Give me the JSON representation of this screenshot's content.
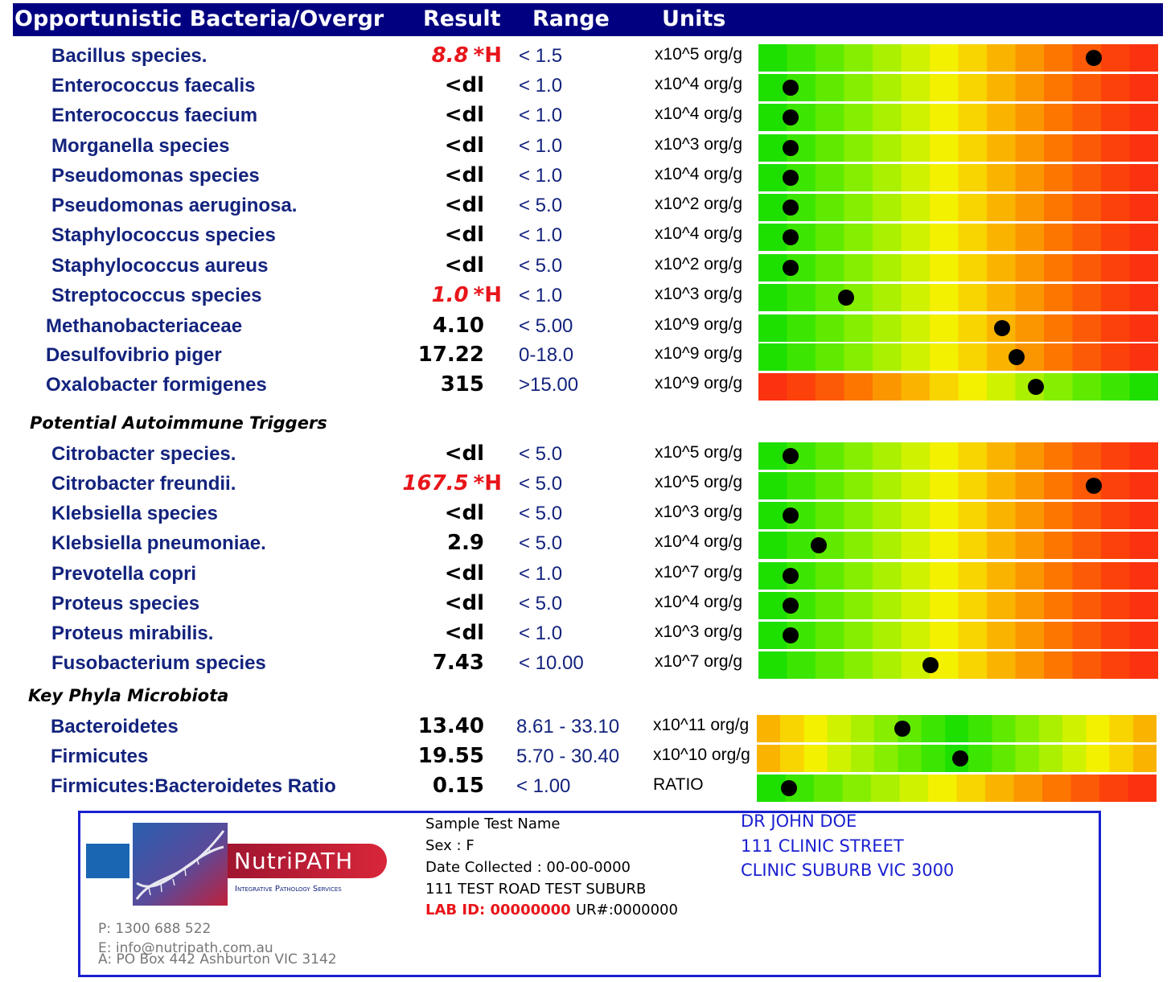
{
  "header": {
    "title": "Opportunistic Bacteria/Overgr",
    "result": "Result",
    "range": "Range",
    "units": "Units"
  },
  "colors": {
    "header_bg": "#000080",
    "name_text": "#13237d",
    "high_flag": "#e8151a",
    "footer_border": "#1a1fd0"
  },
  "sections": {
    "autoimmune": "Potential Autoimmune Triggers",
    "phyla": "Key Phyla Microbiota"
  },
  "rows": [
    {
      "name": "Bacillus species.",
      "result": "8.8",
      "flag": "*H",
      "high": true,
      "range": "< 1.5",
      "unit": "x10^5 org/g",
      "gradient": "green-red",
      "level": 0.84
    },
    {
      "name": "Enterococcus faecalis",
      "result": "<dl",
      "flag": "",
      "high": false,
      "range": "< 1.0",
      "unit": "x10^4 org/g",
      "gradient": "green-red",
      "level": 0.08
    },
    {
      "name": "Enterococcus faecium",
      "result": "<dl",
      "flag": "",
      "high": false,
      "range": "< 1.0",
      "unit": "x10^4 org/g",
      "gradient": "green-red",
      "level": 0.08
    },
    {
      "name": "Morganella species",
      "result": "<dl",
      "flag": "",
      "high": false,
      "range": "< 1.0",
      "unit": "x10^3 org/g",
      "gradient": "green-red",
      "level": 0.08
    },
    {
      "name": "Pseudomonas species",
      "result": "<dl",
      "flag": "",
      "high": false,
      "range": "< 1.0",
      "unit": "x10^4 org/g",
      "gradient": "green-red",
      "level": 0.08
    },
    {
      "name": "Pseudomonas aeruginosa.",
      "result": "<dl",
      "flag": "",
      "high": false,
      "range": "< 5.0",
      "unit": "x10^2 org/g",
      "gradient": "green-red",
      "level": 0.08
    },
    {
      "name": "Staphylococcus species",
      "result": "<dl",
      "flag": "",
      "high": false,
      "range": "< 1.0",
      "unit": "x10^4 org/g",
      "gradient": "green-red",
      "level": 0.08
    },
    {
      "name": "Staphylococcus aureus",
      "result": "<dl",
      "flag": "",
      "high": false,
      "range": "< 5.0",
      "unit": "x10^2 org/g",
      "gradient": "green-red",
      "level": 0.08
    },
    {
      "name": "Streptococcus species",
      "result": "1.0",
      "flag": "*H",
      "high": true,
      "range": "< 1.0",
      "unit": "x10^3 org/g",
      "gradient": "green-red",
      "level": 0.22
    },
    {
      "name": "Methanobacteriaceae",
      "result": "4.10",
      "flag": "",
      "high": false,
      "range": "< 5.00",
      "unit": "x10^9 org/g",
      "gradient": "green-red",
      "level": 0.61
    },
    {
      "name": "Desulfovibrio piger",
      "result": "17.22",
      "flag": "",
      "high": false,
      "range": "0-18.0",
      "unit": "x10^9 org/g",
      "gradient": "green-red",
      "level": 0.645
    },
    {
      "name": "Oxalobacter formigenes",
      "result": "315",
      "flag": "",
      "high": false,
      "range": ">15.00",
      "unit": "x10^9 org/g",
      "gradient": "red-green",
      "level": 0.695
    },
    {
      "name": "Citrobacter species.",
      "result": "<dl",
      "flag": "",
      "high": false,
      "range": "< 5.0",
      "unit": "x10^5 org/g",
      "gradient": "green-red",
      "level": 0.08
    },
    {
      "name": "Citrobacter freundii.",
      "result": "167.5",
      "flag": "*H",
      "high": true,
      "range": "< 5.0",
      "unit": "x10^5 org/g",
      "gradient": "green-red",
      "level": 0.84
    },
    {
      "name": "Klebsiella species",
      "result": "<dl",
      "flag": "",
      "high": false,
      "range": "< 5.0",
      "unit": "x10^3 org/g",
      "gradient": "green-red",
      "level": 0.08
    },
    {
      "name": "Klebsiella pneumoniae.",
      "result": "2.9",
      "flag": "",
      "high": false,
      "range": "< 5.0",
      "unit": "x10^4 org/g",
      "gradient": "green-red",
      "level": 0.15
    },
    {
      "name": "Prevotella copri",
      "result": "<dl",
      "flag": "",
      "high": false,
      "range": "< 1.0",
      "unit": "x10^7 org/g",
      "gradient": "green-red",
      "level": 0.08
    },
    {
      "name": "Proteus species",
      "result": "<dl",
      "flag": "",
      "high": false,
      "range": "< 5.0",
      "unit": "x10^4 org/g",
      "gradient": "green-red",
      "level": 0.08
    },
    {
      "name": "Proteus mirabilis.",
      "result": "<dl",
      "flag": "",
      "high": false,
      "range": "< 1.0",
      "unit": "x10^3 org/g",
      "gradient": "green-red",
      "level": 0.08
    },
    {
      "name": "Fusobacterium species",
      "result": "7.43",
      "flag": "",
      "high": false,
      "range": "< 10.00",
      "unit": "x10^7 org/g",
      "gradient": "green-red",
      "level": 0.43
    },
    {
      "name": "Bacteroidetes",
      "result": "13.40",
      "flag": "",
      "high": false,
      "range": "8.61 - 33.10",
      "unit": "x10^11 org/g",
      "gradient": "red-green-red",
      "level": 0.365
    },
    {
      "name": "Firmicutes",
      "result": "19.55",
      "flag": "",
      "high": false,
      "range": "5.70 - 30.40",
      "unit": "x10^10 org/g",
      "gradient": "red-green-red",
      "level": 0.51
    },
    {
      "name": "Firmicutes:Bacteroidetes Ratio",
      "result": "0.15",
      "flag": "",
      "high": false,
      "range": "< 1.00",
      "unit": "RATIO",
      "gradient": "green-red",
      "level": 0.08
    }
  ],
  "footer": {
    "logo_word": "NutriPATH",
    "logo_tagline": "Integrative Pathology Services",
    "phone": "P: 1300 688 522",
    "email": "E: info@nutripath.com.au",
    "address": "A: PO Box 442 Ashburton VIC 3142",
    "patient_name": "Sample Test Name",
    "sex": "Sex : F",
    "date_collected": "Date Collected :  00-00-0000",
    "patient_address": "111  TEST ROAD TEST SUBURB",
    "lab_id": "LAB ID: 00000000",
    "ur": "UR#:0000000",
    "doctor_name": "DR JOHN DOE",
    "doctor_street": "111 CLINIC STREET",
    "doctor_suburb": "CLINIC SUBURB VIC 3000"
  }
}
